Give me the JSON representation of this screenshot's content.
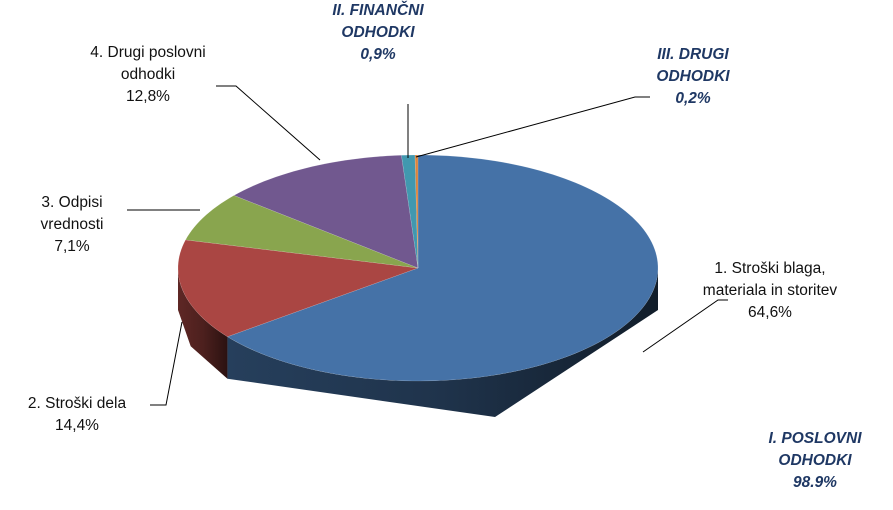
{
  "chart_data": {
    "type": "pie3d",
    "categories": [
      "1. Stroški blaga, materiala in storitev",
      "2. Stroški dela",
      "3. Odpisi vrednosti",
      "4. Drugi poslovni odhodki",
      "II. FINANČNI ODHODKI",
      "III. DRUGI ODHODKI"
    ],
    "values": [
      64.6,
      14.4,
      7.1,
      12.8,
      0.9,
      0.2
    ],
    "value_labels": [
      "64,6%",
      "14,4%",
      "7,1%",
      "12,8%",
      "0,9%",
      "0,2%"
    ],
    "colors": [
      "#4572a7",
      "#aa4643",
      "#89a54e",
      "#71588f",
      "#4198af",
      "#db843d"
    ],
    "annotations": [
      {
        "text": "I. POSLOVNI ODHODKI",
        "value_label": "98.9%"
      }
    ]
  }
}
